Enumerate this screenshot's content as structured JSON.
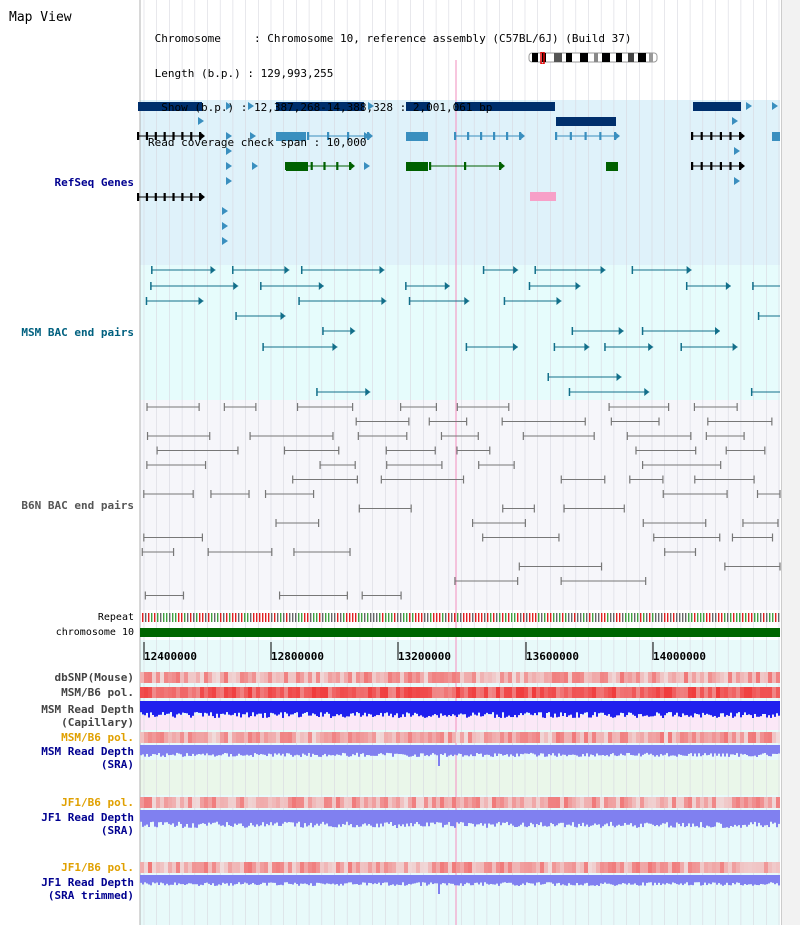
{
  "view": {
    "title": "Map View",
    "info_lines": [
      " Chromosome     : Chromosome 10, reference assembly (C57BL/6J) (Build 37)",
      " Length (b.p.) : 129,993,255",
      "  Show (b.p.) : 12,387,268-14,388,328 : 2,001,061 bp",
      "Read coverage check span : 10,000"
    ]
  },
  "tracks": {
    "refseq": {
      "label": "RefSeq Genes"
    },
    "msm_bac": {
      "label": "MSM BAC end pairs"
    },
    "b6n_bac": {
      "label": "B6N BAC end pairs"
    },
    "repeat": {
      "label": "Repeat"
    },
    "chromosome": {
      "label": "chromosome 10"
    },
    "dbsnp": {
      "label": "dbSNP(Mouse)"
    },
    "msm_b6_pol": {
      "label": "MSM/B6 pol."
    },
    "msm_depth_cap": {
      "label1": "MSM Read Depth",
      "label2": "(Capillary)"
    },
    "msm_b6_pol_sra": {
      "label": "MSM/B6 pol."
    },
    "msm_depth_sra": {
      "label1": "MSM Read Depth",
      "label2": "(SRA)"
    },
    "jf1_b6_pol": {
      "label": "JF1/B6 pol."
    },
    "jf1_depth_sra": {
      "label1": "JF1 Read Depth",
      "label2": "(SRA)"
    },
    "jf1_b6_pol2": {
      "label": "JF1/B6 pol."
    },
    "jf1_depth_trim": {
      "label1": "JF1 Read Depth",
      "label2": "(SRA trimmed)"
    }
  },
  "axis": {
    "ticks": [
      "12400000",
      "12800000",
      "13200000",
      "13600000",
      "14000000"
    ]
  },
  "colors": {
    "refseq_bg": "#dff2fa",
    "msm_bg": "#e6fcfc",
    "b6n_bg": "#f6f6fa",
    "gene_dark": "#002f6c",
    "gene_mid": "#3a8fbf",
    "gene_green": "#006000",
    "bac_msm": "#126f8a",
    "bac_b6n": "#777777",
    "chromosome_bar": "#006600",
    "depth_blue": "#2020ee",
    "depth_light": "#8080f0",
    "label_navy": "#000090",
    "label_teal": "#00607f",
    "label_orange": "#e0a000"
  }
}
